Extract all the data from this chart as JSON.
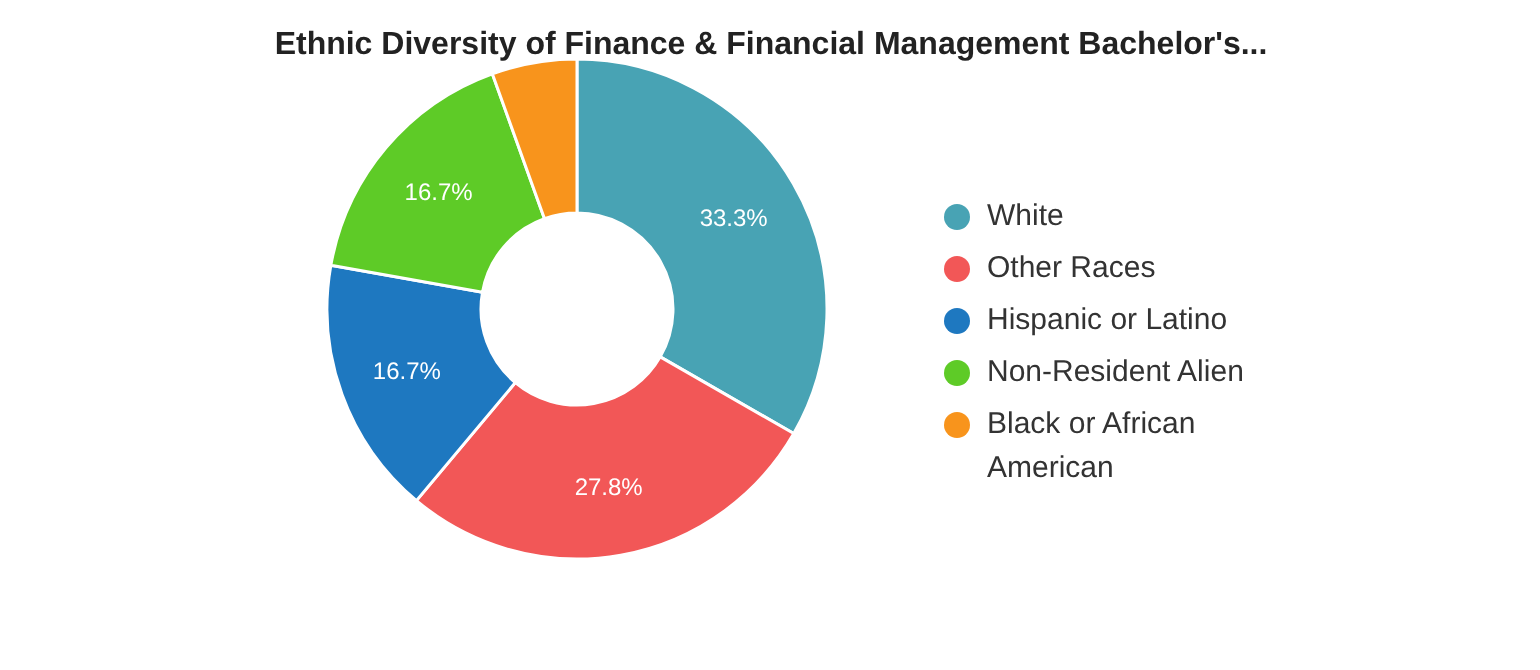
{
  "chart_data": {
    "type": "donut",
    "title": "Ethnic Diversity of Finance & Financial Management Bachelor's...",
    "categories": [
      "White",
      "Other Races",
      "Hispanic or Latino",
      "Non-Resident Alien",
      "Black or African American"
    ],
    "values": [
      33.3,
      27.8,
      16.7,
      16.7,
      5.5
    ],
    "value_labels": [
      "33.3%",
      "27.8%",
      "16.7%",
      "16.7%",
      null
    ],
    "colors": [
      "#48a3b4",
      "#f25757",
      "#1e78c0",
      "#5ecb27",
      "#f8941c"
    ],
    "legend": "right"
  }
}
